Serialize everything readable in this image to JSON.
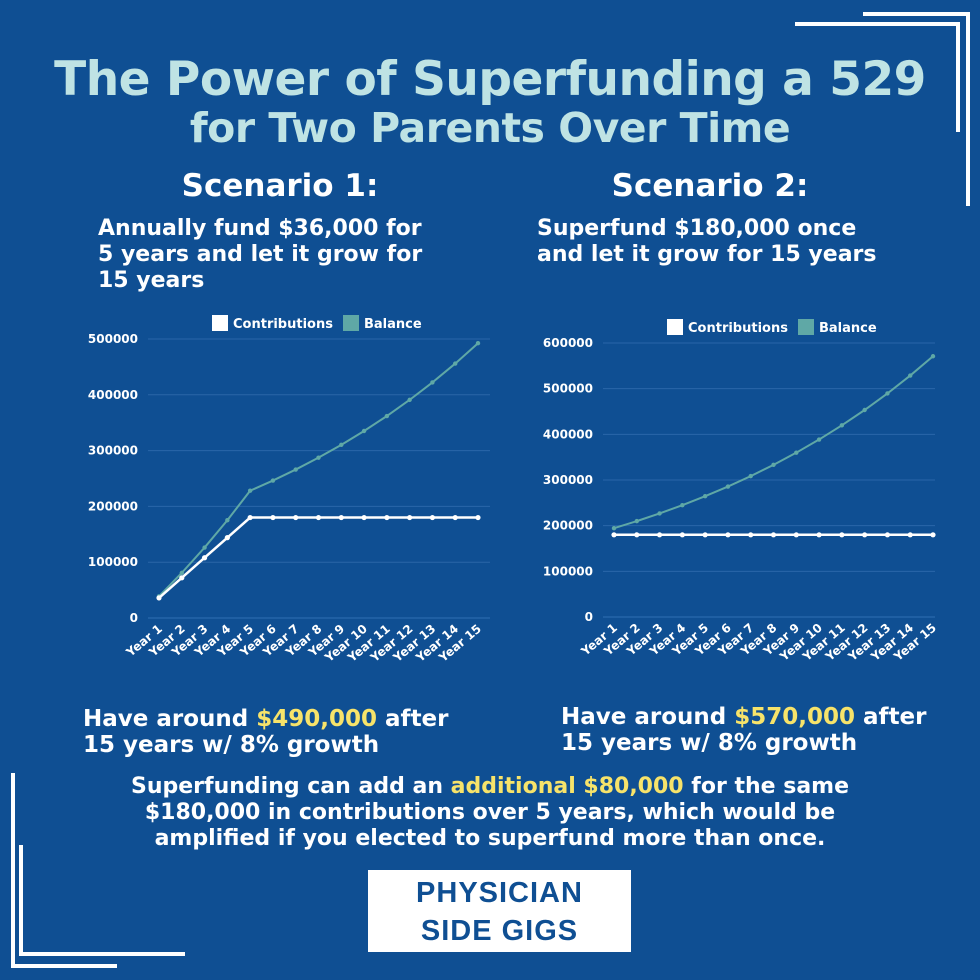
{
  "header": {
    "title_line1": "The Power of Superfunding a 529",
    "title_line2": "for Two Parents Over Time"
  },
  "scenarios": [
    {
      "heading": "Scenario 1:",
      "description_lines": [
        "Annually fund $36,000 for",
        "5 years and let it grow for",
        "15 years"
      ],
      "result_prefix": "Have around ",
      "result_amount": "$490,000",
      "result_suffix": " after",
      "result_line2": "15 years w/ 8% growth"
    },
    {
      "heading": "Scenario 2:",
      "description_lines": [
        "Superfund $180,000 once",
        "and let it grow for 15 years"
      ],
      "result_prefix": "Have around ",
      "result_amount": "$570,000",
      "result_suffix": " after",
      "result_line2": "15 years w/ 8% growth"
    }
  ],
  "summary": {
    "prefix": "Superfunding can add an ",
    "highlight": "additional $80,000",
    "suffix": " for the same",
    "line2": "$180,000 in contributions over 5 years, which would be",
    "line3": "amplified if you elected to superfund more than once."
  },
  "logo": {
    "line1": "PHYSICIAN",
    "line2": "SIDE GIGS"
  },
  "colors": {
    "background": "#0f4f93",
    "title": "#bfe3e4",
    "highlight": "#f7e36a",
    "contributions": "#ffffff",
    "balance": "#5fa8a6"
  },
  "chart_data": [
    {
      "type": "line",
      "title": "Scenario 1",
      "categories": [
        "Year 1",
        "Year 2",
        "Year 3",
        "Year 4",
        "Year 5",
        "Year 6",
        "Year 7",
        "Year 8",
        "Year 9",
        "Year 10",
        "Year 11",
        "Year 12",
        "Year 13",
        "Year 14",
        "Year 15"
      ],
      "series": [
        {
          "name": "Contributions",
          "color": "#ffffff",
          "values": [
            36000,
            72000,
            108000,
            144000,
            180000,
            180000,
            180000,
            180000,
            180000,
            180000,
            180000,
            180000,
            180000,
            180000,
            180000
          ]
        },
        {
          "name": "Balance",
          "color": "#5fa8a6",
          "values": [
            38880,
            80870,
            126220,
            175198,
            228094,
            246341,
            266049,
            287332,
            310319,
            335144,
            361956,
            390912,
            422185,
            455960,
            492437
          ]
        }
      ],
      "yticks": [
        0,
        100000,
        200000,
        300000,
        400000,
        500000
      ],
      "ylim": [
        0,
        500000
      ],
      "xlabel": "",
      "ylabel": "",
      "grid": true,
      "legend_position": "top"
    },
    {
      "type": "line",
      "title": "Scenario 2",
      "categories": [
        "Year 1",
        "Year 2",
        "Year 3",
        "Year 4",
        "Year 5",
        "Year 6",
        "Year 7",
        "Year 8",
        "Year 9",
        "Year 10",
        "Year 11",
        "Year 12",
        "Year 13",
        "Year 14",
        "Year 15"
      ],
      "series": [
        {
          "name": "Contributions",
          "color": "#ffffff",
          "values": [
            180000,
            180000,
            180000,
            180000,
            180000,
            180000,
            180000,
            180000,
            180000,
            180000,
            180000,
            180000,
            180000,
            180000,
            180000
          ]
        },
        {
          "name": "Balance",
          "color": "#5fa8a6",
          "values": [
            194400,
            209952,
            226748,
            244888,
            264479,
            285637,
            308488,
            333167,
            359820,
            388606,
            419695,
            453270,
            489532,
            528694,
            570990
          ]
        }
      ],
      "yticks": [
        0,
        100000,
        200000,
        300000,
        400000,
        500000,
        600000
      ],
      "ylim": [
        0,
        600000
      ],
      "xlabel": "",
      "ylabel": "",
      "grid": true,
      "legend_position": "top"
    }
  ]
}
